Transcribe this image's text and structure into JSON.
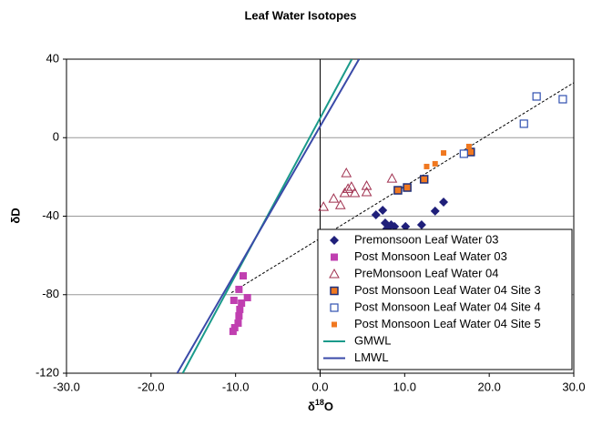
{
  "chart_data": {
    "type": "scatter",
    "title": "Leaf Water Isotopes",
    "x_label_parts": [
      "δ",
      "18",
      "O"
    ],
    "y_label": "δD",
    "xlim": [
      -30,
      30
    ],
    "ylim": [
      -120,
      40
    ],
    "xticks": [
      {
        "value": -30,
        "label": "-30.0"
      },
      {
        "value": -20,
        "label": "-20.0"
      },
      {
        "value": -10,
        "label": "-10.0"
      },
      {
        "value": 0,
        "label": "0.0"
      },
      {
        "value": 10,
        "label": "10.0"
      },
      {
        "value": 20,
        "label": "20.0"
      },
      {
        "value": 30,
        "label": "30.0"
      }
    ],
    "yticks": [
      40,
      0,
      -40,
      -80,
      -120
    ],
    "grid": true,
    "legend": "lower right",
    "series": [
      {
        "name": "Premonsoon Leaf Water 03",
        "marker": "diamond",
        "color": "#1f1f7a",
        "x": [
          6.6,
          7.4,
          7.7,
          7.9,
          8.4,
          8.8,
          10.1,
          12.0,
          13.6,
          14.6
        ],
        "y": [
          -39.3,
          -37.0,
          -43.5,
          -46.3,
          -44.4,
          -45.3,
          -45.3,
          -44.4,
          -37.4,
          -32.8
        ]
      },
      {
        "name": "Post Monsoon Leaf Water 03",
        "marker": "square",
        "color": "#c03fb0",
        "x": [
          -9.1,
          -9.6,
          -8.6,
          -10.2,
          -9.3,
          -9.5,
          -9.6,
          -9.7,
          -10.1,
          -10.3
        ],
        "y": [
          -70.4,
          -77.3,
          -81.5,
          -82.9,
          -84.3,
          -87.5,
          -90.8,
          -94.5,
          -96.8,
          -98.7
        ]
      },
      {
        "name": "PreMonsoon Leaf Water 04",
        "marker": "triangle-open",
        "color": "#a0304f",
        "x": [
          0.4,
          1.6,
          2.4,
          2.9,
          3.1,
          3.3,
          3.7,
          4.1,
          5.5,
          5.5,
          8.5
        ],
        "y": [
          -35.2,
          -31.0,
          -34.3,
          -28.2,
          -18.0,
          -26.0,
          -25.0,
          -28.2,
          -24.5,
          -27.7,
          -20.8
        ]
      },
      {
        "name": "Post Monsoon Leaf Water 04 Site 3",
        "marker": "square-bordered",
        "color": "#f07820",
        "x": [
          9.2,
          10.3,
          12.3,
          17.8
        ],
        "y": [
          -26.8,
          -25.4,
          -21.2,
          -7.3
        ]
      },
      {
        "name": "Post Monsoon Leaf Water 04 Site 4",
        "marker": "square-open",
        "color": "#3050b0",
        "x": [
          17.0,
          24.1,
          25.6,
          28.7
        ],
        "y": [
          -8.2,
          7.1,
          21.0,
          19.6
        ]
      },
      {
        "name": "Post Monsoon Leaf Water 04 Site 5",
        "marker": "square-small",
        "color": "#f07820",
        "x": [
          12.6,
          13.6,
          14.6,
          17.6
        ],
        "y": [
          -14.7,
          -13.3,
          -7.8,
          -4.5
        ]
      },
      {
        "name": "GMWL",
        "marker": "line",
        "color": "#1a9a8a",
        "x": [
          -16.25,
          3.75
        ],
        "y": [
          -120,
          40
        ]
      },
      {
        "name": "LMWL",
        "marker": "line",
        "color": "#3a4aa8",
        "x": [
          -16.9,
          4.6
        ],
        "y": [
          -120,
          40
        ]
      }
    ],
    "trendline": {
      "x": [
        -10.5,
        30
      ],
      "y": [
        -79,
        28
      ]
    }
  }
}
